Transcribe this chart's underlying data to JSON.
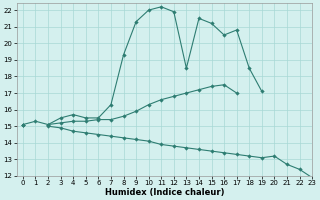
{
  "xlabel": "Humidex (Indice chaleur)",
  "xlim": [
    -0.5,
    23
  ],
  "ylim": [
    12,
    22.4
  ],
  "yticks": [
    12,
    13,
    14,
    15,
    16,
    17,
    18,
    19,
    20,
    21,
    22
  ],
  "xticks": [
    0,
    1,
    2,
    3,
    4,
    5,
    6,
    7,
    8,
    9,
    10,
    11,
    12,
    13,
    14,
    15,
    16,
    17,
    18,
    19,
    20,
    21,
    22,
    23
  ],
  "background_color": "#d4f0ee",
  "grid_color": "#a8d8d5",
  "line_color": "#2e7d72",
  "line1_y": [
    15.1,
    15.3,
    15.1,
    15.5,
    15.7,
    15.5,
    15.5,
    16.3,
    19.3,
    21.3,
    22.0,
    22.2,
    21.9,
    18.5,
    21.5,
    21.2,
    20.5,
    20.8,
    18.5,
    17.1,
    null,
    null,
    null,
    null
  ],
  "line2_y": [
    15.1,
    null,
    15.1,
    15.2,
    15.3,
    15.3,
    15.4,
    15.4,
    15.6,
    15.9,
    16.3,
    16.6,
    16.8,
    17.0,
    17.2,
    17.4,
    17.5,
    17.0,
    null,
    null,
    null,
    null,
    null,
    null
  ],
  "line3_y": [
    15.1,
    null,
    15.0,
    14.9,
    14.7,
    14.6,
    14.5,
    14.4,
    14.3,
    14.2,
    14.1,
    13.9,
    13.8,
    13.7,
    13.6,
    13.5,
    13.4,
    13.3,
    13.2,
    13.1,
    13.2,
    12.7,
    12.4,
    11.9
  ]
}
